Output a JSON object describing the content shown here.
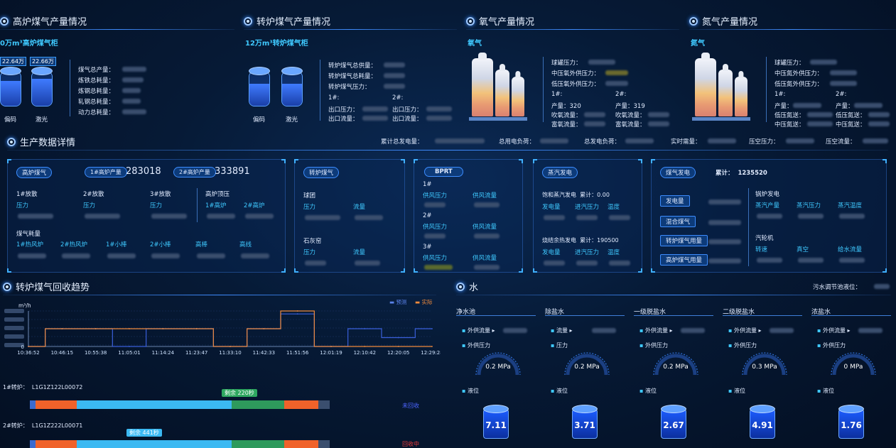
{
  "top": {
    "blast": {
      "title": "高炉煤气产量情况",
      "subtitle": "0万m³高炉煤气柜",
      "tank_values": [
        "22.64万",
        "22.66万"
      ],
      "tank_labels": [
        "偏码",
        "激光"
      ],
      "fields": [
        "煤气总产量：",
        "炼铁总耗量：",
        "炼钢总耗量：",
        "轧钢总耗量：",
        "动力总耗量："
      ]
    },
    "converter": {
      "title": "转炉煤气产量情况",
      "subtitle": "12万m³转炉煤气柜",
      "tank_labels": [
        "偏码",
        "激光"
      ],
      "fields": [
        "转炉煤气总供量：",
        "转炉煤气总耗量：",
        "转炉煤气压力："
      ],
      "col1": "1#:",
      "col2": "2#:",
      "row_a": "出口压力：",
      "row_b": "出口流量："
    },
    "oxygen": {
      "title": "氧气产量情况",
      "subtitle": "氧气",
      "fields": [
        "球罐压力：",
        "中压氧外供压力：",
        "低压氧外供压力："
      ],
      "col1": "1#:",
      "col2": "2#:",
      "r1a": "产量：",
      "r1a_v": "320",
      "r1b": "产量：",
      "r1b_v": "319",
      "r2a": "吹氧流量：",
      "r2b": "吹氧流量：",
      "r3a": "富氧流量：",
      "r3b": "富氧流量："
    },
    "nitrogen": {
      "title": "氮气产量情况",
      "subtitle": "氮气",
      "fields": [
        "球罐压力：",
        "中压氮外供压力：",
        "低压氮外供压力："
      ],
      "col1": "1#:",
      "col2": "2#:",
      "r1a": "产量：",
      "r1b": "产量：",
      "r2a": "低压氮送：",
      "r2b": "低压氮送：",
      "r3a": "中压氮送：",
      "r3b": "中压氮送："
    }
  },
  "production": {
    "title": "生产数据详情",
    "summary": [
      "累计总发电量：",
      "总用电负荷：",
      "总发电负荷：",
      "实时需量：",
      "压空压力：",
      "压空流量："
    ],
    "blast": {
      "tag": "高炉煤气",
      "p1_label": "1#高炉产量",
      "p1_value": "283018",
      "p2_label": "2#高炉产量",
      "p2_value": "333891",
      "diss": [
        "1#放散",
        "2#放散",
        "3#放散"
      ],
      "pressure": "压力",
      "top_pressure": "高炉顶压",
      "furnaces": [
        "1#高炉",
        "2#高炉"
      ],
      "consume": "煤气耗量",
      "consumers": [
        "1#热风炉",
        "2#热风炉",
        "1#小棒",
        "2#小棒",
        "高棒",
        "高线"
      ]
    },
    "converter": {
      "tag": "转炉煤气",
      "g1": "球团",
      "g2": "石灰窑",
      "pressure": "压力",
      "flow": "流量"
    },
    "bprt": {
      "tag": "BPRT",
      "units": [
        "1#",
        "2#",
        "3#"
      ],
      "a": "供风压力",
      "b": "供风流量"
    },
    "steam": {
      "tag": "蒸汽发电",
      "s1": "饱和蒸汽发电",
      "acc": "累计：",
      "s1_val": "0.00",
      "s2": "烧结余热发电",
      "s2_val": "190500",
      "cols": [
        "发电量",
        "进汽压力",
        "温度"
      ]
    },
    "gasgen": {
      "tag": "煤气发电",
      "acc_label": "累计：",
      "acc_value": "1235520",
      "buttons": [
        "发电量",
        "混合煤气",
        "转炉煤气用量",
        "高炉煤气用量"
      ],
      "boiler": "锅炉发电",
      "boiler_cols": [
        "蒸汽产量",
        "蒸汽压力",
        "蒸汽温度"
      ],
      "turbine": "汽轮机",
      "turbine_cols": [
        "转速",
        "真空",
        "给水流量"
      ]
    }
  },
  "trend": {
    "title": "转炉煤气回收趋势",
    "unit": "m³/h",
    "legend": [
      "预测",
      "实际"
    ],
    "furnace1_label": "1#转炉：",
    "furnace1_id": "L1G1Z122L00072",
    "furnace1_remain": "剩余 220秒",
    "furnace1_status": "未回收",
    "furnace2_label": "2#转炉：",
    "furnace2_id": "L1G1Z222L00071",
    "furnace2_remain": "剩余 441秒",
    "furnace2_status": "回收中"
  },
  "chart_data": {
    "type": "line",
    "ylabel": "m³/h",
    "x": [
      "10:36:52",
      "10:46:15",
      "10:55:38",
      "11:05:01",
      "11:14:24",
      "11:23:47",
      "11:33:10",
      "11:42:33",
      "11:51:56",
      "12:01:19",
      "12:10:42",
      "12:20:05",
      "12:29:28"
    ],
    "y_zero_label": "0",
    "series": [
      {
        "name": "预测",
        "color": "#3a5fd9",
        "values": [
          0,
          30,
          30,
          0,
          30,
          30,
          0,
          30,
          55,
          0,
          30,
          15,
          30
        ]
      },
      {
        "name": "实际",
        "color": "#f08a3c",
        "values": [
          0,
          30,
          30,
          30,
          30,
          30,
          0,
          30,
          60,
          0,
          0,
          0,
          0
        ]
      }
    ]
  },
  "water": {
    "title": "水",
    "pool_label": "污水调节池液位：",
    "units": [
      {
        "name": "净水池",
        "f1": "外供流量",
        "f2": "外供压力",
        "pressure": "0.2 MPa",
        "level_label": "液位",
        "level": "7.11"
      },
      {
        "name": "除盐水",
        "f1": "流量",
        "f2": "压力",
        "pressure": "0.2 MPa",
        "level_label": "液位",
        "level": "3.71"
      },
      {
        "name": "一级脱盐水",
        "f1": "外供流量",
        "f2": "外供压力",
        "pressure": "0.2 MPa",
        "level_label": "液位",
        "level": "2.67"
      },
      {
        "name": "二级脱盐水",
        "f1": "外供流量",
        "f2": "外供压力",
        "pressure": "0.3 MPa",
        "level_label": "液位",
        "level": "4.91"
      },
      {
        "name": "浓盐水",
        "f1": "外供流量",
        "f2": "外供压力",
        "pressure": "0 MPa",
        "level_label": "液位",
        "level": "1.76"
      }
    ]
  }
}
